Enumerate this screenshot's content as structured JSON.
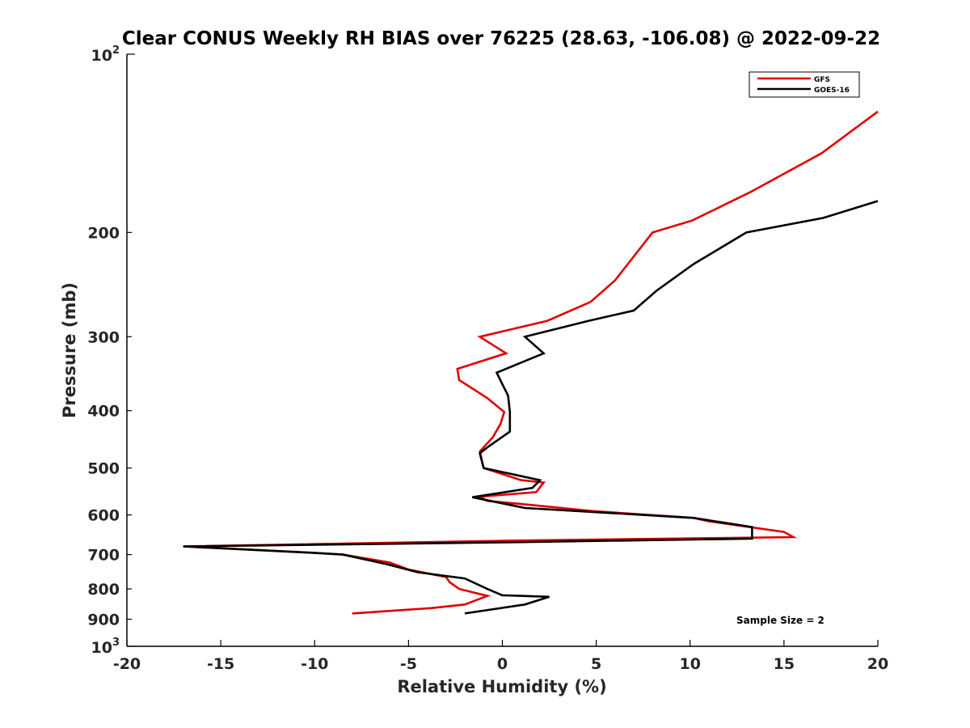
{
  "chart_data": {
    "type": "line",
    "title": "Clear CONUS Weekly RH BIAS over 76225 (28.63, -106.08) @ 2022-09-22",
    "xlabel": "Relative Humidity (%)",
    "ylabel": "Pressure (mb)",
    "xlim": [
      -20,
      20
    ],
    "ylim": [
      100,
      1000
    ],
    "y_scale": "log",
    "y_reversed": true,
    "grid": false,
    "legend_position": "top-right",
    "x_ticks": [
      "-20",
      "-15",
      "-10",
      "-5",
      "0",
      "5",
      "10",
      "15",
      "20"
    ],
    "y_ticks": [
      {
        "value": 100,
        "base": "10",
        "exp": "2"
      },
      {
        "value": 200,
        "label": "200"
      },
      {
        "value": 300,
        "label": "300"
      },
      {
        "value": 400,
        "label": "400"
      },
      {
        "value": 500,
        "label": "500"
      },
      {
        "value": 600,
        "label": "600"
      },
      {
        "value": 700,
        "label": "700"
      },
      {
        "value": 800,
        "label": "800"
      },
      {
        "value": 900,
        "label": "900"
      },
      {
        "value": 1000,
        "base": "10",
        "exp": "3"
      }
    ],
    "annotation": "Sample Size = 2",
    "series": [
      {
        "name": "GFS",
        "color": "#e00000",
        "points": [
          [
            20.0,
            125
          ],
          [
            17.0,
            147
          ],
          [
            13.2,
            171
          ],
          [
            10.1,
            191
          ],
          [
            8.0,
            200
          ],
          [
            6.0,
            241
          ],
          [
            4.7,
            262
          ],
          [
            2.4,
            282
          ],
          [
            -1.2,
            300
          ],
          [
            0.2,
            320
          ],
          [
            -2.4,
            340
          ],
          [
            -2.3,
            355
          ],
          [
            -0.8,
            381
          ],
          [
            0.1,
            402
          ],
          [
            -0.1,
            421
          ],
          [
            -0.5,
            443
          ],
          [
            -1.2,
            469
          ],
          [
            -1.0,
            500
          ],
          [
            1.0,
            524
          ],
          [
            2.2,
            529
          ],
          [
            1.8,
            549
          ],
          [
            -1.2,
            559
          ],
          [
            -0.8,
            568
          ],
          [
            1.0,
            575
          ],
          [
            4.8,
            591
          ],
          [
            10.2,
            607
          ],
          [
            11.0,
            615
          ],
          [
            15.0,
            641
          ],
          [
            15.5,
            654
          ],
          [
            0.6,
            663
          ],
          [
            -17.0,
            678
          ],
          [
            -10.5,
            694
          ],
          [
            -8.5,
            700
          ],
          [
            -6.0,
            722
          ],
          [
            -5.0,
            742
          ],
          [
            -3.0,
            764
          ],
          [
            -2.8,
            780
          ],
          [
            -2.3,
            800
          ],
          [
            -0.8,
            822
          ],
          [
            -2.0,
            850
          ],
          [
            -3.8,
            862
          ],
          [
            -8.0,
            880
          ]
        ]
      },
      {
        "name": "GOES-16",
        "color": "#000000",
        "points": [
          [
            20.0,
            177
          ],
          [
            17.1,
            189
          ],
          [
            13.0,
            200
          ],
          [
            10.2,
            226
          ],
          [
            8.2,
            251
          ],
          [
            7.0,
            271
          ],
          [
            4.6,
            282
          ],
          [
            1.2,
            300
          ],
          [
            2.2,
            320
          ],
          [
            -0.3,
            345
          ],
          [
            0.0,
            361
          ],
          [
            0.3,
            377
          ],
          [
            0.4,
            402
          ],
          [
            0.4,
            434
          ],
          [
            -0.7,
            459
          ],
          [
            -1.2,
            472
          ],
          [
            -1.0,
            500
          ],
          [
            2.0,
            524
          ],
          [
            1.6,
            540
          ],
          [
            -1.6,
            560
          ],
          [
            1.2,
            584
          ],
          [
            10.2,
            607
          ],
          [
            13.3,
            629
          ],
          [
            13.3,
            658
          ],
          [
            0.5,
            667
          ],
          [
            -17.0,
            678
          ],
          [
            -10.5,
            694
          ],
          [
            -8.5,
            700
          ],
          [
            -6.2,
            726
          ],
          [
            -4.5,
            750
          ],
          [
            -2.0,
            768
          ],
          [
            -0.8,
            800
          ],
          [
            0.0,
            820
          ],
          [
            2.5,
            825
          ],
          [
            1.2,
            850
          ],
          [
            -2.0,
            880
          ]
        ]
      }
    ]
  }
}
